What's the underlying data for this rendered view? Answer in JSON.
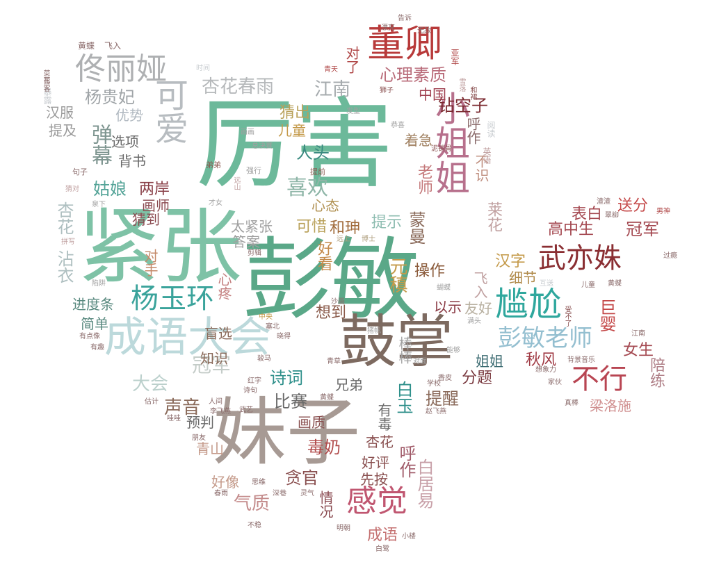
{
  "words": [
    {
      "text": "厉害",
      "color": "#6cb99a"
    },
    {
      "text": "彭敏",
      "color": "#5aa888"
    },
    {
      "text": "紧张",
      "color": "#7ec2a6"
    },
    {
      "text": "鼓掌",
      "color": "#7d6a60"
    },
    {
      "text": "妹子",
      "color": "#a79a94"
    },
    {
      "text": "成语大会",
      "color": "#bcd9db"
    },
    {
      "text": "董卿",
      "color": "#b83a3a"
    },
    {
      "text": "佟丽娅",
      "color": "#aeb0b2"
    },
    {
      "text": "小姐姐",
      "color": "#b7708c"
    },
    {
      "text": "可爱",
      "color": "#b7bcc0"
    },
    {
      "text": "尴尬",
      "color": "#2fa79d"
    },
    {
      "text": "杨玉环",
      "color": "#3aa39b"
    },
    {
      "text": "武亦姝",
      "color": "#8a2e32"
    },
    {
      "text": "感觉",
      "color": "#c05670"
    },
    {
      "text": "彭敏老师",
      "color": "#94bfd0"
    },
    {
      "text": "不行",
      "color": "#b84552"
    },
    {
      "text": "杏花春雨",
      "color": "#b6b9bb"
    },
    {
      "text": "江南",
      "color": "#a6abae"
    },
    {
      "text": "心理素质",
      "color": "#b86a78"
    },
    {
      "text": "喜欢",
      "color": "#8fb6a8"
    },
    {
      "text": "杨贵妃",
      "color": "#9fa4a7"
    },
    {
      "text": "弹幕",
      "color": "#7f9691"
    },
    {
      "text": "钻空子",
      "color": "#7b2a30"
    },
    {
      "text": "高中生",
      "color": "#a44850"
    },
    {
      "text": "冠军",
      "color": "#a44850"
    },
    {
      "text": "表白",
      "color": "#a44850"
    },
    {
      "text": "送分",
      "color": "#c44848"
    },
    {
      "text": "提示",
      "color": "#8dbcb0"
    },
    {
      "text": "可惜",
      "color": "#b9a15a"
    },
    {
      "text": "和珅",
      "color": "#a06a3a"
    },
    {
      "text": "姑娘",
      "color": "#53a397"
    },
    {
      "text": "两岸",
      "color": "#8a4048"
    },
    {
      "text": "大会",
      "color": "#bbd0cc"
    },
    {
      "text": "冠军",
      "color": "#c4ccc8"
    },
    {
      "text": "诗词",
      "color": "#2d8f8a"
    },
    {
      "text": "声音",
      "color": "#8a6a5a"
    },
    {
      "text": "比赛",
      "color": "#6a6a6a"
    },
    {
      "text": "毒奶",
      "color": "#b04a4a"
    },
    {
      "text": "贪官",
      "color": "#8a5050"
    },
    {
      "text": "气质",
      "color": "#c48c8c"
    },
    {
      "text": "成语",
      "color": "#c47070"
    },
    {
      "text": "白居易",
      "color": "#c8a0a8"
    },
    {
      "text": "呼作",
      "color": "#a05a68"
    },
    {
      "text": "白玉",
      "color": "#2d8f8a"
    },
    {
      "text": "提醒",
      "color": "#8a6a5a"
    },
    {
      "text": "分题",
      "color": "#7a3a40"
    },
    {
      "text": "巨婴",
      "color": "#c44848"
    },
    {
      "text": "女生",
      "color": "#a44850"
    },
    {
      "text": "陪练",
      "color": "#b08088"
    },
    {
      "text": "梁洛施",
      "color": "#d09090"
    },
    {
      "text": "秋风",
      "color": "#a03a44"
    },
    {
      "text": "姐姐",
      "color": "#3a6a70"
    },
    {
      "text": "汉字",
      "color": "#c49a4a"
    },
    {
      "text": "细节",
      "color": "#b08a4a"
    },
    {
      "text": "操作",
      "color": "#8a5a3a"
    },
    {
      "text": "以示",
      "color": "#8a3a44"
    },
    {
      "text": "友好",
      "color": "#b8b0a0"
    },
    {
      "text": "元稹",
      "color": "#c49a4a"
    },
    {
      "text": "蒙曼",
      "color": "#8a6a5a"
    },
    {
      "text": "猜出",
      "color": "#b9a15a"
    },
    {
      "text": "人头",
      "color": "#3a8a80"
    },
    {
      "text": "儿童",
      "color": "#c49a4a"
    },
    {
      "text": "心态",
      "color": "#b09050"
    },
    {
      "text": "老师",
      "color": "#c4787a"
    },
    {
      "text": "太紧张",
      "color": "#a0a0a0"
    },
    {
      "text": "答案",
      "color": "#a0a0a0"
    },
    {
      "text": "心疼",
      "color": "#c48080"
    },
    {
      "text": "好看",
      "color": "#c48a4a"
    },
    {
      "text": "想到",
      "color": "#8a5a4a"
    },
    {
      "text": "盲选",
      "color": "#8a6a5a"
    },
    {
      "text": "知识",
      "color": "#8a6a5a"
    },
    {
      "text": "预判",
      "color": "#6a6a6a"
    },
    {
      "text": "进度条",
      "color": "#5a8a80"
    },
    {
      "text": "简单",
      "color": "#5a8a80"
    },
    {
      "text": "沾衣",
      "color": "#aebfc0"
    },
    {
      "text": "杏花",
      "color": "#aebfc0"
    },
    {
      "text": "画师",
      "color": "#8a4a50"
    },
    {
      "text": "猜到",
      "color": "#8a4a50"
    },
    {
      "text": "对手",
      "color": "#c48a6a"
    },
    {
      "text": "选项",
      "color": "#6a6a6a"
    },
    {
      "text": "背书",
      "color": "#6a6a6a"
    },
    {
      "text": "汉服",
      "color": "#9a9a9a"
    },
    {
      "text": "提及",
      "color": "#9a9a9a"
    },
    {
      "text": "优势",
      "color": "#b0b8c0"
    },
    {
      "text": "呼作",
      "color": "#8a6a6a"
    },
    {
      "text": "不识",
      "color": "#c09080"
    },
    {
      "text": "中国",
      "color": "#a04050"
    },
    {
      "text": "着急",
      "color": "#a08060"
    },
    {
      "text": "对了",
      "color": "#b04848"
    },
    {
      "text": "青山",
      "color": "#c49a8a"
    },
    {
      "text": "好像",
      "color": "#c49a8a"
    },
    {
      "text": "情况",
      "color": "#8a4a50"
    },
    {
      "text": "先按",
      "color": "#8a5050"
    },
    {
      "text": "好评",
      "color": "#8a5050"
    },
    {
      "text": "杏花",
      "color": "#8a5050"
    },
    {
      "text": "画质",
      "color": "#8a5050"
    },
    {
      "text": "兄弟",
      "color": "#6a6a6a"
    },
    {
      "text": "有毒",
      "color": "#6a6a6a"
    },
    {
      "text": "棒棒",
      "color": "#a0a0a0"
    },
    {
      "text": "飞入",
      "color": "#c0a0a0"
    },
    {
      "text": "莱花",
      "color": "#c0a0a0"
    },
    {
      "text": "黄蝶",
      "color": "#8a6a6a"
    },
    {
      "text": "飞入",
      "color": "#8a6a6a"
    },
    {
      "text": "时间",
      "color": "#c8ccd0"
    },
    {
      "text": "暴露",
      "color": "#c8ccd0"
    },
    {
      "text": "菜花",
      "color": "#8a6a6a"
    },
    {
      "text": "百客",
      "color": "#8a6a6a"
    },
    {
      "text": "句子",
      "color": "#8a6a6a"
    },
    {
      "text": "总决赛",
      "color": "#a0a0a0"
    },
    {
      "text": "画画",
      "color": "#a0a0a0"
    },
    {
      "text": "弟弟",
      "color": "#8a5a50"
    },
    {
      "text": "强行",
      "color": "#a0a0a0"
    },
    {
      "text": "提前",
      "color": "#8a5a50"
    },
    {
      "text": "远山",
      "color": "#c0a0a0"
    },
    {
      "text": "泉下",
      "color": "#a0a0a0"
    },
    {
      "text": "才女",
      "color": "#a0a0a0"
    },
    {
      "text": "猜对",
      "color": "#c0a0a0"
    },
    {
      "text": "拼写",
      "color": "#c0a0a0"
    },
    {
      "text": "陷阱",
      "color": "#a0a0a0"
    },
    {
      "text": "剪辑",
      "color": "#8a6a6a"
    },
    {
      "text": "远上",
      "color": "#b0a080"
    },
    {
      "text": "博士",
      "color": "#b0a080"
    },
    {
      "text": "沙画",
      "color": "#8a6a6a"
    },
    {
      "text": "中央",
      "color": "#c49a4a"
    },
    {
      "text": "塞北",
      "color": "#8a6a6a"
    },
    {
      "text": "晓得",
      "color": "#8a6a6a"
    },
    {
      "text": "骏马",
      "color": "#8a6a6a"
    },
    {
      "text": "青草",
      "color": "#8a6a6a"
    },
    {
      "text": "红字",
      "color": "#8a6a6a"
    },
    {
      "text": "诗句",
      "color": "#8a6a6a"
    },
    {
      "text": "黄蝶",
      "color": "#8a6a6a"
    },
    {
      "text": "人间",
      "color": "#8a6a6a"
    },
    {
      "text": "李飞燕",
      "color": "#8a6a6a"
    },
    {
      "text": "武艺",
      "color": "#8a6a6a"
    },
    {
      "text": "有点像",
      "color": "#8a6a6a"
    },
    {
      "text": "有趣",
      "color": "#8a6a6a"
    },
    {
      "text": "估计",
      "color": "#8a6a6a"
    },
    {
      "text": "哇哇",
      "color": "#8a6a6a"
    },
    {
      "text": "朋友",
      "color": "#8a6a6a"
    },
    {
      "text": "思维",
      "color": "#8a6a6a"
    },
    {
      "text": "深巷",
      "color": "#8a6a6a"
    },
    {
      "text": "春雨",
      "color": "#8a6a6a"
    },
    {
      "text": "灵气",
      "color": "#8a6a6a"
    },
    {
      "text": "不稳",
      "color": "#8a6a6a"
    },
    {
      "text": "明朝",
      "color": "#8a6a6a"
    },
    {
      "text": "白鹭",
      "color": "#8a6a6a"
    },
    {
      "text": "小楼",
      "color": "#8a6a6a"
    },
    {
      "text": "过瘾",
      "color": "#8a6a6a"
    },
    {
      "text": "黄蝶",
      "color": "#8a6a6a"
    },
    {
      "text": "儿童",
      "color": "#8a6a6a"
    },
    {
      "text": "江南",
      "color": "#8a6a6a"
    },
    {
      "text": "背景音乐",
      "color": "#8a6a6a"
    },
    {
      "text": "想象力",
      "color": "#8a6a6a"
    },
    {
      "text": "家伙",
      "color": "#8a6a6a"
    },
    {
      "text": "真棒",
      "color": "#8a6a6a"
    },
    {
      "text": "翠柳",
      "color": "#8a6a6a"
    },
    {
      "text": "渣渣",
      "color": "#8a6a6a"
    },
    {
      "text": "漂亮",
      "color": "#8a6a6a"
    },
    {
      "text": "告诉",
      "color": "#8a6a6a"
    },
    {
      "text": "无敌",
      "color": "#8a6a6a"
    },
    {
      "text": "亚军",
      "color": "#b04848"
    },
    {
      "text": "青天",
      "color": "#b04848"
    },
    {
      "text": "狮子",
      "color": "#8a5050"
    },
    {
      "text": "发型",
      "color": "#a0a0a0"
    },
    {
      "text": "泥销骨",
      "color": "#8a5050"
    },
    {
      "text": "恭喜",
      "color": "#a0a0a0"
    },
    {
      "text": "阅读",
      "color": "#c8ccd0"
    },
    {
      "text": "英语",
      "color": "#c0a0a0"
    },
    {
      "text": "雪落",
      "color": "#c0a0a0"
    },
    {
      "text": "对面",
      "color": "#a0a0a0"
    },
    {
      "text": "学校",
      "color": "#8a6a6a"
    },
    {
      "text": "香皮",
      "color": "#8a6a6a"
    },
    {
      "text": "赵飞燕",
      "color": "#8a6a6a"
    },
    {
      "text": "满头",
      "color": "#a0a0a0"
    },
    {
      "text": "能够",
      "color": "#a0a0a0"
    },
    {
      "text": "蝴蝶",
      "color": "#a0a0a0"
    },
    {
      "text": "猪帆",
      "color": "#a0a0a0"
    },
    {
      "text": "互送",
      "color": "#c8ccd0"
    },
    {
      "text": "受不了",
      "color": "#8a5050"
    },
    {
      "text": "和裙",
      "color": "#8a5050"
    },
    {
      "text": "男神",
      "color": "#b04848"
    }
  ]
}
